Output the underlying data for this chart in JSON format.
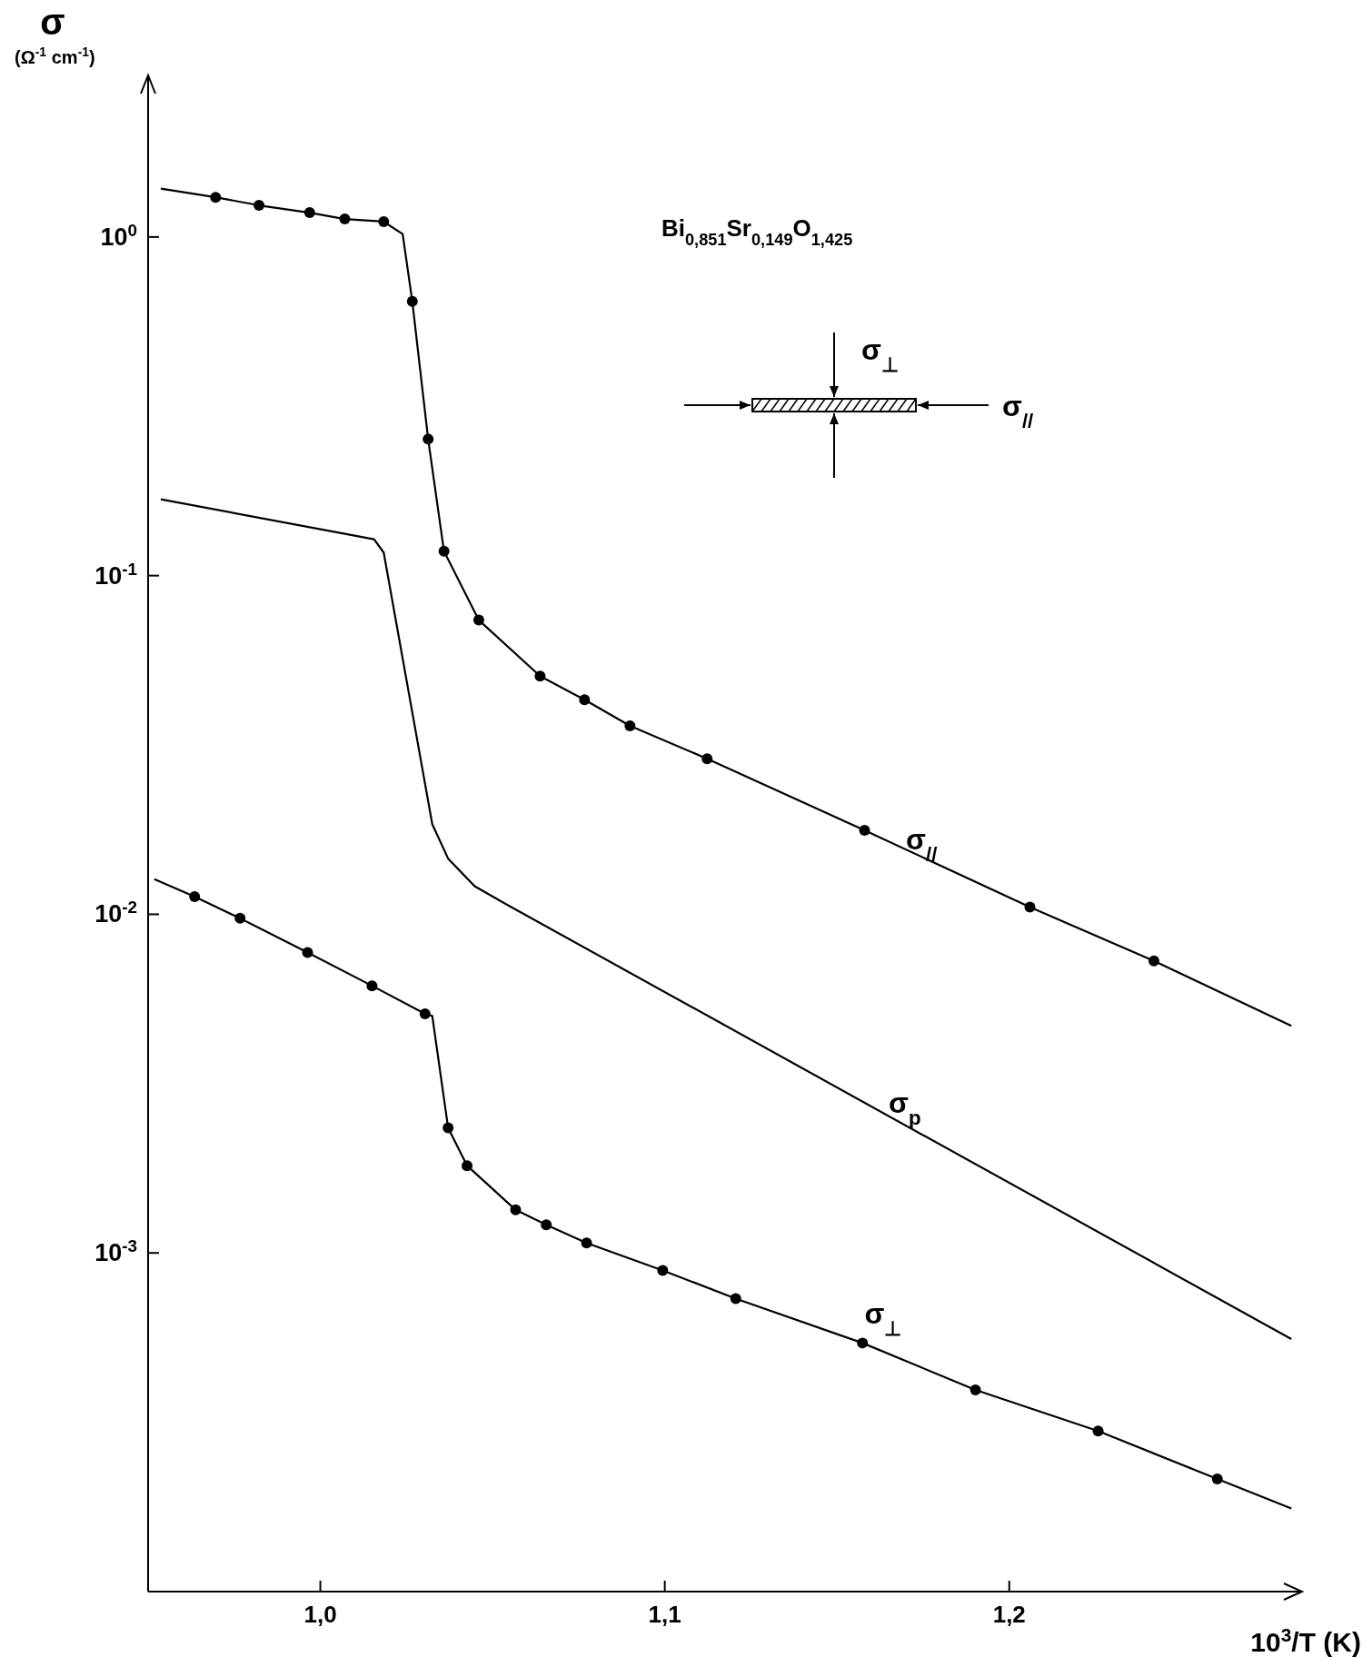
{
  "chart_data": {
    "type": "line",
    "title": "Bi$_{0,851}$Sr$_{0,149}$O$_{1,425}$",
    "xlabel": "10$^{3}$/T (K)",
    "ylabel": "σ (Ω$^{-1}$ cm$^{-1}$)",
    "log": "y",
    "grid": false,
    "legend": false,
    "xlim": [
      0.95,
      1.285
    ],
    "ylim": [
      0.0001,
      3
    ],
    "xticks": [
      {
        "value": 1.0,
        "label": "1,0"
      },
      {
        "value": 1.1,
        "label": "1,1"
      },
      {
        "value": 1.2,
        "label": "1,2"
      }
    ],
    "yticks": [
      {
        "value": 1,
        "label": "10$^{0}$"
      },
      {
        "value": 0.1,
        "label": "10$^{-1}$"
      },
      {
        "value": 0.01,
        "label": "10$^{-2}$"
      },
      {
        "value": 0.001,
        "label": "10$^{-3}$"
      }
    ],
    "annotations": [
      "σ$_{⊥}$",
      "σ$_{//}$"
    ],
    "series": [
      {
        "name": "σ$_{//}$",
        "color": "#000000",
        "marker": "none",
        "x": [
          0.9537,
          0.9696,
          0.9822,
          0.9969,
          1.0071,
          1.0184,
          1.0239,
          1.0267,
          1.0313,
          1.0359,
          1.046,
          1.0638,
          1.0767,
          1.0899,
          1.1123,
          1.158,
          1.206,
          1.242,
          1.2819
        ],
        "values": [
          1.39,
          1.31,
          1.24,
          1.18,
          1.13,
          1.11,
          1.02,
          0.645,
          0.253,
          0.118,
          0.0739,
          0.0505,
          0.043,
          0.036,
          0.0288,
          0.0177,
          0.0105,
          0.00728,
          0.00468
        ]
      },
      {
        "type": "scatter",
        "color": "#000000",
        "marker": "circle",
        "x": [
          0.9696,
          0.9822,
          0.9969,
          1.0071,
          1.0184,
          1.0267,
          1.0313,
          1.0359,
          1.046,
          1.0638,
          1.0767,
          1.0899,
          1.1123,
          1.158,
          1.206,
          1.242
        ],
        "values": [
          1.31,
          1.24,
          1.18,
          1.13,
          1.11,
          0.645,
          0.253,
          0.118,
          0.0739,
          0.0505,
          0.043,
          0.036,
          0.0288,
          0.0177,
          0.0105,
          0.00728
        ]
      },
      {
        "name": "σ$_{p}$",
        "color": "#000000",
        "marker": "none",
        "x": [
          0.9537,
          1.0156,
          1.0184,
          1.0325,
          1.0371,
          1.0448,
          1.054,
          1.2819
        ],
        "values": [
          0.168,
          0.128,
          0.117,
          0.01845,
          0.0146,
          0.0121,
          0.0107,
          0.000557
        ]
      },
      {
        "name": "σ$_{⊥}$",
        "color": "#000000",
        "marker": "none",
        "x": [
          0.9518,
          0.9635,
          0.9767,
          0.9963,
          1.015,
          1.0304,
          1.0325,
          1.0371,
          1.0426,
          1.0567,
          1.0656,
          1.0773,
          1.0994,
          1.1206,
          1.1574,
          1.1902,
          1.2258,
          1.2604,
          1.2819
        ],
        "values": [
          0.0127,
          0.01127,
          0.00973,
          0.00771,
          0.00615,
          0.00508,
          0.00501,
          0.00234,
          0.00181,
          0.00134,
          0.00121,
          0.00107,
          0.000888,
          0.000733,
          0.000542,
          0.000394,
          0.000298,
          0.000215,
          0.000176
        ]
      },
      {
        "type": "scatter",
        "color": "#000000",
        "marker": "circle",
        "x": [
          0.9635,
          0.9767,
          0.9963,
          1.015,
          1.0304,
          1.0371,
          1.0426,
          1.0567,
          1.0656,
          1.0773,
          1.0994,
          1.1206,
          1.1574,
          1.1902,
          1.2258,
          1.2604
        ],
        "values": [
          0.01127,
          0.00973,
          0.00771,
          0.00615,
          0.00508,
          0.00234,
          0.00181,
          0.00134,
          0.00121,
          0.00107,
          0.000888,
          0.000733,
          0.000542,
          0.000394,
          0.000298,
          0.000215
        ]
      }
    ]
  }
}
